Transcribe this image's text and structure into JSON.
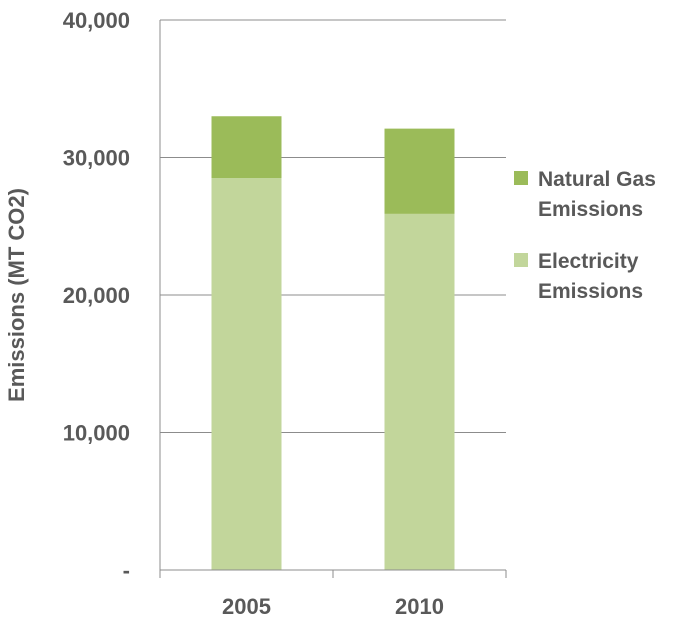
{
  "chart_data": {
    "type": "bar",
    "stacked": true,
    "categories": [
      "2005",
      "2010"
    ],
    "series": [
      {
        "name": "Electricity Emissions",
        "values": [
          28500,
          25900
        ],
        "color": "#c2d69b"
      },
      {
        "name": "Natural Gas Emissions",
        "values": [
          4500,
          6200
        ],
        "color": "#9bbb59"
      }
    ],
    "ylabel": "Emissions (MT CO2)",
    "xlabel": "",
    "title": "",
    "ylim": [
      0,
      40000
    ],
    "yticks": [
      0,
      10000,
      20000,
      30000,
      40000
    ],
    "ytick_labels": [
      "-",
      "10,000",
      "20,000",
      "30,000",
      "40,000"
    ],
    "grid": true,
    "legend_position": "right"
  },
  "legend": {
    "items": [
      {
        "label": "Natural Gas Emissions",
        "color": "#9bbb59"
      },
      {
        "label": "Electricity Emissions",
        "color": "#c2d69b"
      }
    ]
  }
}
